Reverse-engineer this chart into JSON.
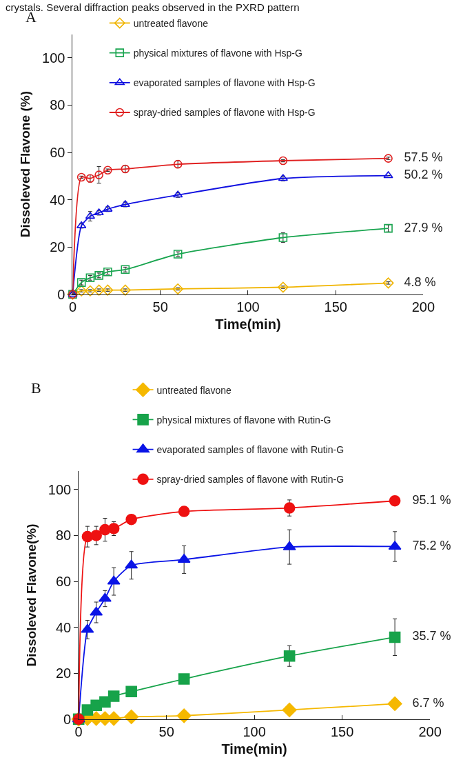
{
  "chart_data": [
    {
      "type": "line",
      "title": "A",
      "xlabel": "Time(min)",
      "ylabel": "Dissoleved Flavone (%)",
      "annotations": [
        "crystals. Several diffraction peaks observed in the PXRD pattern"
      ],
      "x": [
        0,
        5,
        10,
        15,
        20,
        30,
        60,
        120,
        180
      ],
      "xlim": [
        0,
        200
      ],
      "xticks": [
        0,
        50,
        100,
        150,
        200
      ],
      "ylim": [
        0,
        110
      ],
      "yticks": [
        0,
        20,
        40,
        60,
        80,
        100
      ],
      "grid": false,
      "legend": "top",
      "series": [
        {
          "name": "untreated flavone",
          "color": "#f0b400",
          "marker": "diamond",
          "values": [
            0,
            1.5,
            1.5,
            1.8,
            1.8,
            1.8,
            2.3,
            3,
            4.8
          ],
          "errors": [
            null,
            0.5,
            0.5,
            0.5,
            0.5,
            0.5,
            0.5,
            0.5,
            0.5
          ],
          "value_labels": [
            null,
            null,
            null,
            null,
            null,
            null,
            null,
            null,
            "4.8 %"
          ]
        },
        {
          "name": "physical mixtures of flavone with Hsp-G",
          "color": "#1aa550",
          "marker": "square",
          "values": [
            0,
            5,
            7,
            8,
            9.5,
            10.5,
            17,
            24,
            27.9
          ],
          "errors": [
            null,
            1,
            1,
            1,
            1,
            1,
            1,
            2,
            1.5
          ],
          "value_labels": [
            null,
            null,
            null,
            null,
            null,
            null,
            null,
            null,
            "27.9 %"
          ]
        },
        {
          "name": "evaporated samples of flavone with Hsp-G",
          "color": "#1010e0",
          "marker": "triangle",
          "values": [
            0,
            29,
            33,
            34.5,
            36,
            38,
            42,
            49,
            50.2
          ],
          "errors": [
            null,
            1,
            2,
            1,
            1,
            1,
            1,
            1,
            null
          ],
          "value_labels": [
            null,
            null,
            null,
            null,
            null,
            null,
            null,
            null,
            "50.2 %"
          ]
        },
        {
          "name": "spray-dried samples of flavone with Hsp-G",
          "color": "#e02020",
          "marker": "circle",
          "values": [
            0,
            49.5,
            49,
            50.5,
            52.5,
            53,
            55,
            56.5,
            57.5
          ],
          "errors": [
            null,
            0.5,
            1.5,
            3.5,
            0.5,
            1.5,
            1.5,
            0.5,
            0.5
          ],
          "value_labels": [
            null,
            null,
            null,
            null,
            null,
            null,
            null,
            null,
            "57.5 %"
          ]
        }
      ]
    },
    {
      "type": "line",
      "title": "B",
      "xlabel": "Time(min)",
      "ylabel": "Dissoleved Flavone(%)",
      "x": [
        0,
        5,
        10,
        15,
        20,
        30,
        60,
        120,
        180
      ],
      "xlim": [
        0,
        200
      ],
      "xticks": [
        0,
        50,
        100,
        150,
        200
      ],
      "ylim": [
        0,
        108
      ],
      "yticks": [
        0,
        20,
        40,
        60,
        80,
        100
      ],
      "grid": false,
      "legend": "top",
      "series": [
        {
          "name": "untreated flavone",
          "color": "#f5b800",
          "marker": "diamond",
          "values": [
            0,
            0.3,
            0.3,
            0.3,
            0.3,
            1,
            1.5,
            4,
            6.7
          ],
          "value_labels": [
            null,
            null,
            null,
            null,
            null,
            null,
            null,
            null,
            "6.7 %"
          ]
        },
        {
          "name": "physical mixtures of flavone with Rutin-G",
          "color": "#17a34a",
          "marker": "square",
          "values": [
            0,
            4,
            6,
            7.5,
            10,
            12,
            17.5,
            27.5,
            35.7
          ],
          "errors": [
            null,
            null,
            null,
            null,
            null,
            null,
            null,
            4.5,
            8
          ],
          "value_labels": [
            null,
            null,
            null,
            null,
            null,
            null,
            null,
            null,
            "35.7 %"
          ]
        },
        {
          "name": "evaporated samples of flavone with Rutin-G",
          "color": "#0a14e6",
          "marker": "triangle",
          "values": [
            0,
            39,
            46.5,
            52.5,
            60,
            67,
            69.5,
            75,
            75.2
          ],
          "errors": [
            null,
            4,
            4.5,
            3.5,
            6,
            6,
            6,
            7.5,
            6.5
          ],
          "value_labels": [
            null,
            null,
            null,
            null,
            null,
            null,
            null,
            null,
            "75.2 %"
          ]
        },
        {
          "name": "spray-dried samples of flavone with Rutin-G",
          "color": "#ee1111",
          "marker": "circle",
          "values": [
            0,
            79.5,
            80,
            82.5,
            83,
            87,
            90.5,
            92,
            95.1
          ],
          "errors": [
            null,
            4.5,
            4,
            5,
            3,
            null,
            null,
            3.5,
            null
          ],
          "value_labels": [
            null,
            null,
            null,
            null,
            null,
            null,
            null,
            null,
            "95.1 %"
          ]
        }
      ]
    }
  ]
}
